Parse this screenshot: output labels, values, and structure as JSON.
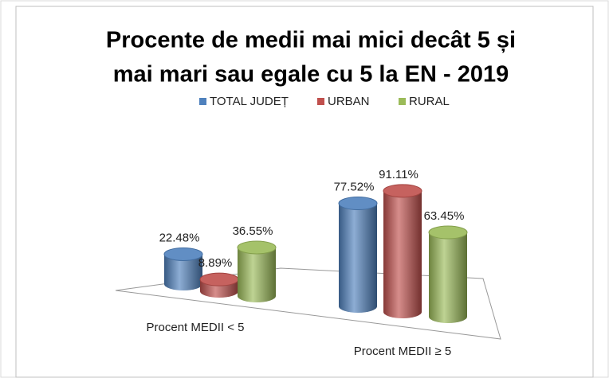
{
  "chart_data": {
    "type": "bar3d",
    "title": [
      "Procente de medii mai mici decât 5 și",
      "mai mari sau egale cu 5 la EN - 2019"
    ],
    "categories": [
      "Procent MEDII < 5",
      "Procent MEDII ≥ 5"
    ],
    "series": [
      {
        "name": "TOTAL JUDEȚ",
        "color": "#4f81bd",
        "values": [
          22.48,
          77.52
        ],
        "value_labels": [
          "22.48%",
          "77.52%"
        ]
      },
      {
        "name": "URBAN",
        "color": "#c0504d",
        "values": [
          8.89,
          91.11
        ],
        "value_labels": [
          "8.89%",
          "91.11%"
        ]
      },
      {
        "name": "RURAL",
        "color": "#9bbb59",
        "values": [
          36.55,
          63.45
        ],
        "value_labels": [
          "36.55%",
          "63.45%"
        ]
      }
    ],
    "legend": "top"
  }
}
